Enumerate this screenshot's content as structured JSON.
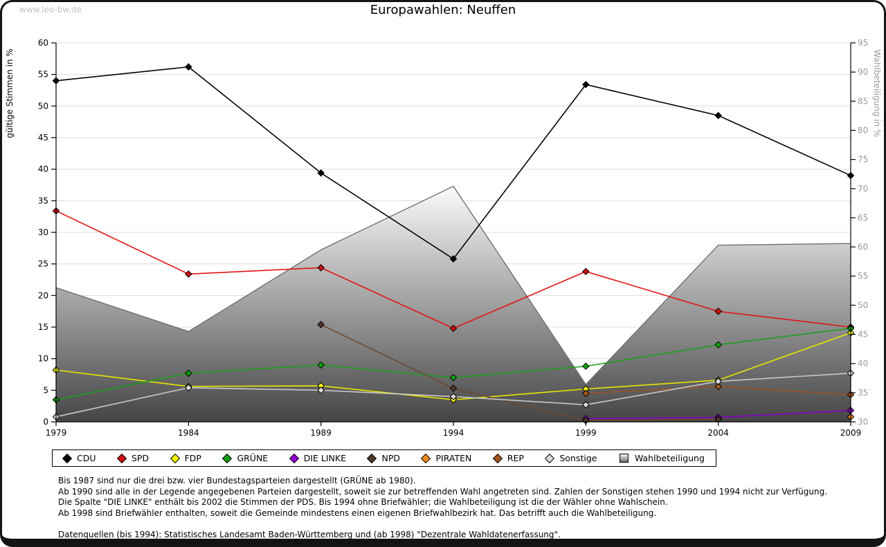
{
  "watermark": "www.leo-bw.de",
  "title": "Europawahlen: Neuffen",
  "axes": {
    "left_label": "gültige Stimmen in %",
    "right_label": "Wahlbeteiligung in %",
    "left_ticks": [
      0,
      5,
      10,
      15,
      20,
      25,
      30,
      35,
      40,
      45,
      50,
      55,
      60
    ],
    "right_ticks": [
      30,
      35,
      40,
      45,
      50,
      55,
      60,
      65,
      70,
      75,
      80,
      85,
      90,
      95
    ],
    "left_range": [
      0,
      60
    ],
    "right_range": [
      30,
      95
    ],
    "years": [
      "1979",
      "1984",
      "1989",
      "1994",
      "1999",
      "2004",
      "2009"
    ]
  },
  "chart_data": {
    "type": "line",
    "title": "Europawahlen: Neuffen",
    "xlabel": "",
    "ylabel_left": "gültige Stimmen in %",
    "ylabel_right": "Wahlbeteiligung in %",
    "x": [
      1979,
      1984,
      1989,
      1994,
      1999,
      2004,
      2009
    ],
    "ylim_left": [
      0,
      60
    ],
    "ylim_right": [
      30,
      95
    ],
    "grid": true,
    "legend_position": "bottom",
    "series": [
      {
        "name": "CDU",
        "axis": "left",
        "color": "#000000",
        "marker": "#000000",
        "values": [
          54.0,
          56.2,
          39.4,
          25.8,
          53.4,
          48.5,
          39.0
        ]
      },
      {
        "name": "SPD",
        "axis": "left",
        "color": "#e21313",
        "marker": "#cc1111",
        "values": [
          33.4,
          23.4,
          24.4,
          14.8,
          23.8,
          17.5,
          15.0
        ]
      },
      {
        "name": "FDP",
        "axis": "left",
        "color": "#e8e800",
        "marker": "#f8f800",
        "values": [
          8.2,
          5.6,
          5.7,
          3.5,
          5.2,
          6.6,
          14.1
        ]
      },
      {
        "name": "GRÜNE",
        "axis": "left",
        "color": "#18a018",
        "marker": "#10a010",
        "values": [
          3.5,
          7.7,
          9.0,
          7.0,
          8.8,
          12.2,
          14.8
        ]
      },
      {
        "name": "DIE LINKE",
        "axis": "left",
        "color": "#8800cc",
        "marker": "#9400d3",
        "values": [
          null,
          null,
          null,
          null,
          0.5,
          0.7,
          1.8
        ]
      },
      {
        "name": "NPD",
        "axis": "left",
        "color": "#6b4a32",
        "marker": "#503626",
        "values": [
          null,
          null,
          15.4,
          5.3,
          0.2,
          0.4,
          null
        ]
      },
      {
        "name": "PIRATEN",
        "axis": "left",
        "color": "#ef8a1d",
        "marker": "#f08a1d",
        "values": [
          null,
          null,
          null,
          null,
          null,
          null,
          0.8
        ]
      },
      {
        "name": "REP",
        "axis": "left",
        "color": "#995327",
        "marker": "#a4571f",
        "values": [
          null,
          null,
          null,
          null,
          4.5,
          5.6,
          4.3
        ]
      },
      {
        "name": "Sonstige",
        "axis": "left",
        "color": "#c9c9c9",
        "marker": "#dadada",
        "values": [
          0.8,
          5.4,
          5.0,
          4.0,
          2.7,
          6.4,
          7.7
        ]
      }
    ],
    "turnout_area": {
      "name": "Wahlbeteiligung",
      "axis": "right",
      "stroke": "#6f6f6f",
      "gradient_top": "#fbfbfb",
      "gradient_bottom": "#454545",
      "values": [
        53.0,
        45.5,
        59.5,
        70.4,
        36.4,
        60.3,
        60.6
      ]
    }
  },
  "legend": [
    {
      "label": "CDU",
      "color": "#000000",
      "shape": "diamond"
    },
    {
      "label": "SPD",
      "color": "#cc1111",
      "shape": "diamond"
    },
    {
      "label": "FDP",
      "color": "#f8f800",
      "shape": "diamond"
    },
    {
      "label": "GRÜNE",
      "color": "#10a010",
      "shape": "diamond"
    },
    {
      "label": "DIE LINKE",
      "color": "#9400d3",
      "shape": "diamond"
    },
    {
      "label": "NPD",
      "color": "#503626",
      "shape": "diamond"
    },
    {
      "label": "PIRATEN",
      "color": "#f08a1d",
      "shape": "diamond"
    },
    {
      "label": "REP",
      "color": "#a4571f",
      "shape": "diamond"
    },
    {
      "label": "Sonstige",
      "color": "#dadada",
      "shape": "diamond"
    },
    {
      "label": "Wahlbeteiligung",
      "color": "#bbbbbb",
      "shape": "square"
    }
  ],
  "footer": {
    "notes": [
      "Bis 1987 sind nur die drei bzw. vier Bundestagsparteien dargestellt (GRÜNE ab 1980).",
      "Ab 1990 sind alle in der Legende angegebenen Parteien dargestellt, soweit sie zur betreffenden Wahl angetreten sind. Zahlen der Sonstigen stehen 1990 und 1994 nicht zur Verfügung.",
      "Die Spalte \"DIE LINKE\" enthält bis 2002 die Stimmen der PDS. Bis 1994 ohne Briefwähler; die Wahlbeteiligung ist die der Wähler ohne Wahlschein.",
      "Ab 1998 sind Briefwähler enthalten, soweit die Gemeinde mindestens einen eigenen Briefwahlbezirk hat. Das betrifft auch die Wahlbeteiligung."
    ],
    "source": "Datenquellen (bis 1994): Statistisches Landesamt Baden-Württemberg und (ab 1998) \"Dezentrale Wahldatenerfassung\"."
  },
  "colors": {
    "grid": "#dcdcdc",
    "axis": "#000000",
    "right_axis_text": "#999999",
    "watermark": "#c2c2c2"
  }
}
